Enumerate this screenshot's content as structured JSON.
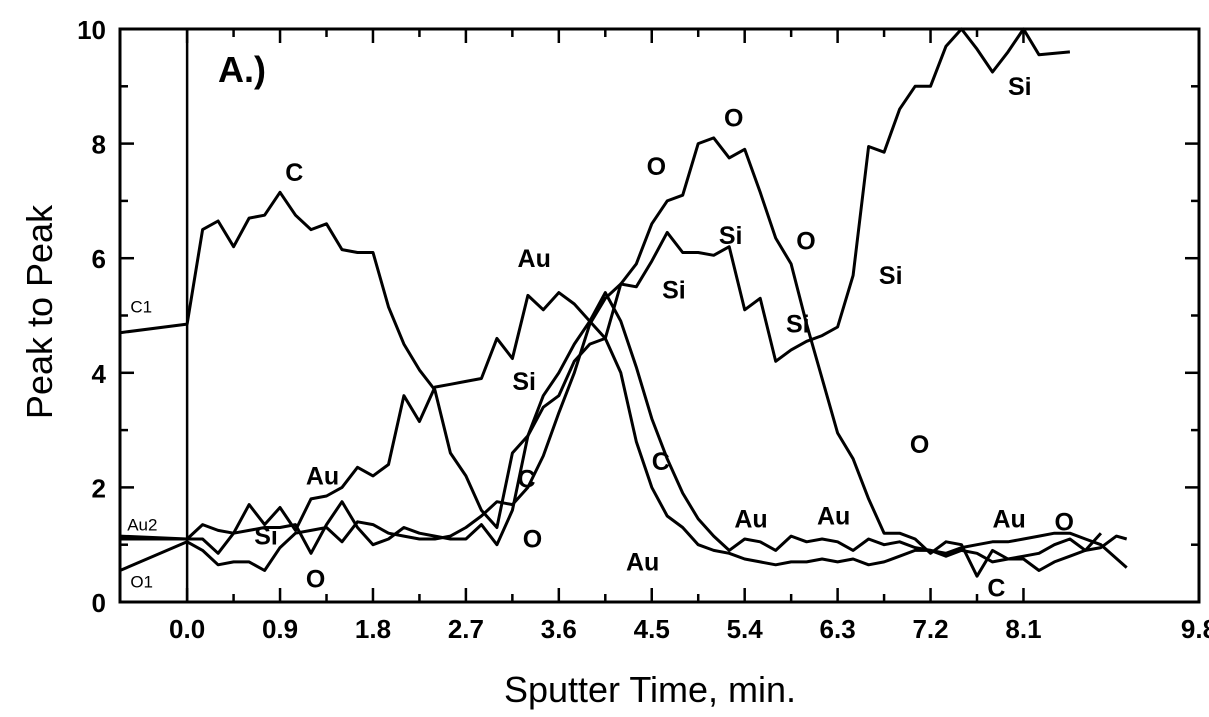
{
  "chart_data": {
    "type": "line",
    "panel_label": "A.)",
    "xlabel": "Sputter Time, min.",
    "ylabel": "Peak to Peak",
    "xlim": [
      -0.65,
      9.8
    ],
    "ylim": [
      0,
      10
    ],
    "x_ticks": [
      0.0,
      0.9,
      1.8,
      2.7,
      3.6,
      4.5,
      5.4,
      6.3,
      7.2,
      8.1,
      9.8
    ],
    "x_tick_labels": [
      "0.0",
      "0.9",
      "1.8",
      "2.7",
      "3.6",
      "4.5",
      "5.4",
      "6.3",
      "7.2",
      "8.1",
      "9.8"
    ],
    "y_ticks": [
      0,
      2,
      4,
      6,
      8,
      10
    ],
    "y_tick_labels": [
      "0",
      "2",
      "4",
      "6",
      "8",
      "10"
    ],
    "initial_marker_x": 0.0,
    "grid": false,
    "series": [
      {
        "name": "C",
        "points": [
          [
            -0.65,
            4.7
          ],
          [
            0.0,
            4.85
          ],
          [
            0.15,
            6.5
          ],
          [
            0.3,
            6.65
          ],
          [
            0.45,
            6.2
          ],
          [
            0.6,
            6.7
          ],
          [
            0.75,
            6.75
          ],
          [
            0.9,
            7.15
          ],
          [
            1.05,
            6.75
          ],
          [
            1.2,
            6.5
          ],
          [
            1.35,
            6.6
          ],
          [
            1.5,
            6.15
          ],
          [
            1.65,
            6.1
          ],
          [
            1.8,
            6.1
          ],
          [
            1.95,
            5.15
          ],
          [
            2.1,
            4.5
          ],
          [
            2.25,
            4.05
          ],
          [
            2.4,
            3.7
          ],
          [
            2.55,
            2.6
          ],
          [
            2.7,
            2.2
          ],
          [
            2.85,
            1.6
          ],
          [
            3.0,
            1.3
          ],
          [
            3.15,
            2.6
          ],
          [
            3.3,
            2.9
          ],
          [
            3.45,
            3.6
          ],
          [
            3.6,
            4.0
          ],
          [
            3.75,
            4.5
          ],
          [
            3.9,
            4.9
          ],
          [
            4.05,
            5.4
          ],
          [
            4.2,
            4.9
          ],
          [
            4.35,
            4.1
          ],
          [
            4.5,
            3.2
          ],
          [
            4.65,
            2.5
          ],
          [
            4.8,
            1.9
          ],
          [
            4.95,
            1.45
          ],
          [
            5.1,
            1.15
          ],
          [
            5.25,
            0.9
          ],
          [
            5.4,
            1.1
          ],
          [
            5.55,
            1.05
          ],
          [
            5.7,
            0.9
          ],
          [
            5.85,
            1.15
          ],
          [
            6.0,
            1.05
          ],
          [
            6.15,
            1.1
          ],
          [
            6.3,
            1.05
          ],
          [
            6.45,
            0.9
          ],
          [
            6.6,
            1.1
          ],
          [
            6.75,
            1.0
          ],
          [
            6.9,
            1.05
          ],
          [
            7.05,
            0.95
          ],
          [
            7.2,
            0.9
          ],
          [
            7.35,
            0.8
          ],
          [
            7.5,
            0.9
          ],
          [
            7.65,
            0.85
          ],
          [
            7.8,
            0.7
          ],
          [
            7.95,
            0.75
          ],
          [
            8.1,
            0.75
          ],
          [
            8.25,
            0.55
          ],
          [
            8.4,
            0.7
          ],
          [
            8.55,
            0.8
          ],
          [
            8.7,
            0.9
          ],
          [
            8.85,
            0.95
          ],
          [
            9.0,
            1.15
          ],
          [
            9.1,
            1.1
          ]
        ]
      },
      {
        "name": "Au",
        "points": [
          [
            -0.65,
            1.15
          ],
          [
            0.0,
            1.1
          ],
          [
            0.15,
            1.1
          ],
          [
            0.3,
            0.85
          ],
          [
            0.45,
            1.2
          ],
          [
            0.6,
            1.7
          ],
          [
            0.75,
            1.35
          ],
          [
            0.9,
            1.65
          ],
          [
            1.05,
            1.25
          ],
          [
            1.2,
            1.8
          ],
          [
            1.35,
            1.85
          ],
          [
            1.5,
            2.0
          ],
          [
            1.65,
            2.35
          ],
          [
            1.8,
            2.2
          ],
          [
            1.95,
            2.4
          ],
          [
            2.1,
            3.6
          ],
          [
            2.25,
            3.15
          ],
          [
            2.4,
            3.75
          ],
          [
            2.55,
            3.8
          ],
          [
            2.7,
            3.85
          ],
          [
            2.85,
            3.9
          ],
          [
            3.0,
            4.6
          ],
          [
            3.15,
            4.25
          ],
          [
            3.3,
            5.35
          ],
          [
            3.45,
            5.1
          ],
          [
            3.6,
            5.4
          ],
          [
            3.75,
            5.2
          ],
          [
            3.9,
            4.9
          ],
          [
            4.05,
            4.6
          ],
          [
            4.2,
            4.0
          ],
          [
            4.35,
            2.8
          ],
          [
            4.5,
            2.0
          ],
          [
            4.65,
            1.5
          ],
          [
            4.8,
            1.3
          ],
          [
            4.95,
            1.0
          ],
          [
            5.1,
            0.9
          ],
          [
            5.25,
            0.85
          ],
          [
            5.4,
            0.75
          ],
          [
            5.55,
            0.7
          ],
          [
            5.7,
            0.65
          ],
          [
            5.85,
            0.7
          ],
          [
            6.0,
            0.7
          ],
          [
            6.15,
            0.75
          ],
          [
            6.3,
            0.7
          ],
          [
            6.45,
            0.75
          ],
          [
            6.6,
            0.65
          ],
          [
            6.75,
            0.7
          ],
          [
            6.9,
            0.8
          ],
          [
            7.05,
            0.9
          ],
          [
            7.2,
            0.9
          ],
          [
            7.35,
            0.85
          ],
          [
            7.5,
            0.95
          ],
          [
            7.65,
            1.0
          ],
          [
            7.8,
            1.05
          ],
          [
            7.95,
            1.05
          ],
          [
            8.1,
            1.1
          ],
          [
            8.25,
            1.15
          ],
          [
            8.4,
            1.2
          ],
          [
            8.55,
            1.2
          ],
          [
            8.7,
            1.1
          ],
          [
            8.85,
            1.0
          ],
          [
            9.1,
            0.6
          ]
        ]
      },
      {
        "name": "Si",
        "points": [
          [
            -0.65,
            1.1
          ],
          [
            0.0,
            1.1
          ],
          [
            0.15,
            1.35
          ],
          [
            0.3,
            1.25
          ],
          [
            0.45,
            1.2
          ],
          [
            0.6,
            1.25
          ],
          [
            0.75,
            1.3
          ],
          [
            0.9,
            1.3
          ],
          [
            1.05,
            1.35
          ],
          [
            1.2,
            0.85
          ],
          [
            1.35,
            1.35
          ],
          [
            1.5,
            1.75
          ],
          [
            1.65,
            1.3
          ],
          [
            1.8,
            1.0
          ],
          [
            1.95,
            1.1
          ],
          [
            2.1,
            1.3
          ],
          [
            2.25,
            1.2
          ],
          [
            2.4,
            1.15
          ],
          [
            2.55,
            1.1
          ],
          [
            2.7,
            1.1
          ],
          [
            2.85,
            1.35
          ],
          [
            3.0,
            1.0
          ],
          [
            3.15,
            1.6
          ],
          [
            3.3,
            2.9
          ],
          [
            3.45,
            3.4
          ],
          [
            3.6,
            3.6
          ],
          [
            3.75,
            4.2
          ],
          [
            3.9,
            4.5
          ],
          [
            4.05,
            4.6
          ],
          [
            4.2,
            5.55
          ],
          [
            4.35,
            5.5
          ],
          [
            4.5,
            5.95
          ],
          [
            4.65,
            6.45
          ],
          [
            4.8,
            6.1
          ],
          [
            4.95,
            6.1
          ],
          [
            5.1,
            6.05
          ],
          [
            5.25,
            6.2
          ],
          [
            5.4,
            5.1
          ],
          [
            5.55,
            5.3
          ],
          [
            5.7,
            4.2
          ],
          [
            5.85,
            4.4
          ],
          [
            6.0,
            4.55
          ],
          [
            6.15,
            4.65
          ],
          [
            6.3,
            4.8
          ],
          [
            6.45,
            5.7
          ],
          [
            6.6,
            7.95
          ],
          [
            6.75,
            7.85
          ],
          [
            6.9,
            8.6
          ],
          [
            7.05,
            9.0
          ],
          [
            7.2,
            9.0
          ],
          [
            7.35,
            9.7
          ],
          [
            7.5,
            10.0
          ],
          [
            7.65,
            9.65
          ],
          [
            7.8,
            9.25
          ],
          [
            7.95,
            9.6
          ],
          [
            8.1,
            10.0
          ],
          [
            8.25,
            9.55
          ],
          [
            8.55,
            9.6
          ]
        ]
      },
      {
        "name": "O",
        "points": [
          [
            -0.65,
            0.55
          ],
          [
            0.0,
            1.05
          ],
          [
            0.15,
            0.9
          ],
          [
            0.3,
            0.65
          ],
          [
            0.45,
            0.7
          ],
          [
            0.6,
            0.7
          ],
          [
            0.75,
            0.55
          ],
          [
            0.9,
            0.95
          ],
          [
            1.05,
            1.2
          ],
          [
            1.2,
            1.25
          ],
          [
            1.35,
            1.3
          ],
          [
            1.5,
            1.05
          ],
          [
            1.65,
            1.4
          ],
          [
            1.8,
            1.35
          ],
          [
            1.95,
            1.2
          ],
          [
            2.1,
            1.15
          ],
          [
            2.25,
            1.1
          ],
          [
            2.4,
            1.1
          ],
          [
            2.55,
            1.15
          ],
          [
            2.7,
            1.3
          ],
          [
            2.85,
            1.5
          ],
          [
            3.0,
            1.75
          ],
          [
            3.15,
            1.7
          ],
          [
            3.3,
            2.0
          ],
          [
            3.45,
            2.55
          ],
          [
            3.6,
            3.3
          ],
          [
            3.75,
            4.0
          ],
          [
            3.9,
            4.85
          ],
          [
            4.05,
            5.3
          ],
          [
            4.2,
            5.55
          ],
          [
            4.35,
            5.9
          ],
          [
            4.5,
            6.6
          ],
          [
            4.65,
            7.0
          ],
          [
            4.8,
            7.1
          ],
          [
            4.95,
            8.0
          ],
          [
            5.1,
            8.1
          ],
          [
            5.25,
            7.75
          ],
          [
            5.4,
            7.9
          ],
          [
            5.55,
            7.15
          ],
          [
            5.7,
            6.35
          ],
          [
            5.85,
            5.9
          ],
          [
            6.0,
            4.85
          ],
          [
            6.15,
            3.9
          ],
          [
            6.3,
            2.95
          ],
          [
            6.45,
            2.5
          ],
          [
            6.6,
            1.8
          ],
          [
            6.75,
            1.2
          ],
          [
            6.9,
            1.2
          ],
          [
            7.05,
            1.1
          ],
          [
            7.2,
            0.85
          ],
          [
            7.35,
            1.05
          ],
          [
            7.5,
            1.0
          ],
          [
            7.65,
            0.45
          ],
          [
            7.8,
            0.9
          ],
          [
            7.95,
            0.75
          ],
          [
            8.1,
            0.8
          ],
          [
            8.25,
            0.85
          ],
          [
            8.4,
            1.0
          ],
          [
            8.55,
            1.1
          ],
          [
            8.7,
            0.9
          ],
          [
            8.85,
            1.2
          ]
        ]
      }
    ],
    "annotations": [
      {
        "text": "C",
        "x": 0.95,
        "y": 7.35,
        "size": "large"
      },
      {
        "text": "Au",
        "x": 3.2,
        "y": 5.85,
        "size": "large"
      },
      {
        "text": "Au",
        "x": 1.15,
        "y": 2.05,
        "size": "large"
      },
      {
        "text": "Si",
        "x": 0.65,
        "y": 1.0,
        "size": "large"
      },
      {
        "text": "O",
        "x": 1.15,
        "y": 0.25,
        "size": "large"
      },
      {
        "text": "Si",
        "x": 3.15,
        "y": 3.7,
        "size": "large"
      },
      {
        "text": "C",
        "x": 3.2,
        "y": 2.0,
        "size": "large"
      },
      {
        "text": "O",
        "x": 3.25,
        "y": 0.95,
        "size": "large"
      },
      {
        "text": "O",
        "x": 4.45,
        "y": 7.45,
        "size": "large"
      },
      {
        "text": "O",
        "x": 5.2,
        "y": 8.3,
        "size": "large"
      },
      {
        "text": "Si",
        "x": 5.15,
        "y": 6.25,
        "size": "large"
      },
      {
        "text": "Si",
        "x": 4.6,
        "y": 5.3,
        "size": "large"
      },
      {
        "text": "O",
        "x": 5.9,
        "y": 6.15,
        "size": "large"
      },
      {
        "text": "Si",
        "x": 5.8,
        "y": 4.7,
        "size": "large"
      },
      {
        "text": "Si",
        "x": 6.7,
        "y": 5.55,
        "size": "large"
      },
      {
        "text": "Si",
        "x": 7.95,
        "y": 8.85,
        "size": "large"
      },
      {
        "text": "C",
        "x": 4.5,
        "y": 2.3,
        "size": "large"
      },
      {
        "text": "Au",
        "x": 4.25,
        "y": 0.55,
        "size": "large"
      },
      {
        "text": "O",
        "x": 7.0,
        "y": 2.6,
        "size": "large"
      },
      {
        "text": "Au",
        "x": 5.3,
        "y": 1.3,
        "size": "large"
      },
      {
        "text": "Au",
        "x": 6.1,
        "y": 1.35,
        "size": "large"
      },
      {
        "text": "Au",
        "x": 7.8,
        "y": 1.3,
        "size": "large"
      },
      {
        "text": "O",
        "x": 8.4,
        "y": 1.25,
        "size": "large"
      },
      {
        "text": "C",
        "x": 7.75,
        "y": 0.1,
        "size": "large"
      },
      {
        "text": "C1",
        "x": -0.55,
        "y": 5.05,
        "size": "small"
      },
      {
        "text": "Au2",
        "x": -0.58,
        "y": 1.25,
        "size": "small"
      },
      {
        "text": "O1",
        "x": -0.55,
        "y": 0.25,
        "size": "small"
      }
    ]
  }
}
